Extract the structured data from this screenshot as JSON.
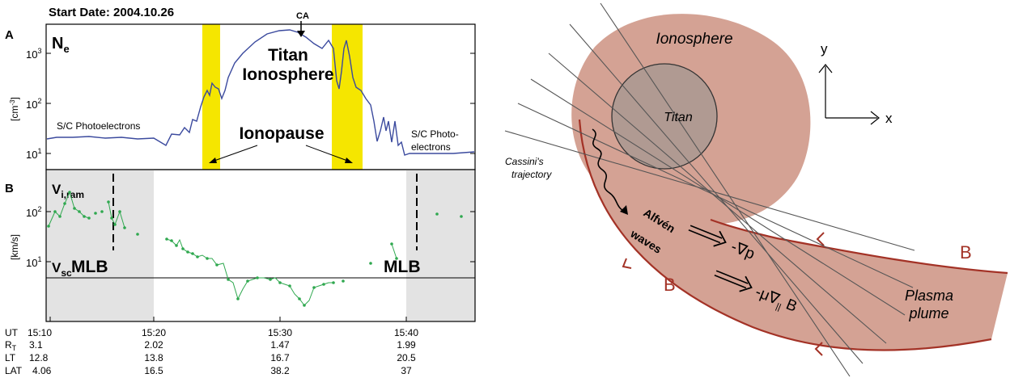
{
  "left_panel": {
    "start_date": "Start Date: 2004.10.26",
    "panel_a": {
      "letter": "A",
      "quantity": "N",
      "quantity_sub": "e",
      "unit": "[cm",
      "unit_sup": "-3",
      "unit_close": "]",
      "tick_base": "10",
      "yticks": [
        {
          "exp": "1",
          "value": 10
        },
        {
          "exp": "2",
          "value": 100
        },
        {
          "exp": "3",
          "value": 1000
        }
      ],
      "ca_label": "CA",
      "titan_label": "Titan",
      "ionosphere_label": "Ionosphere",
      "ionopause_label": "Ionopause",
      "photo_left_label": "S/C Photoelectrons",
      "photo_right_line1": "S/C Photo-",
      "photo_right_line2": "electrons",
      "highlight_color": "#f5e600",
      "line_color": "#3b4a9e"
    },
    "panel_b": {
      "letter": "B",
      "vi_label": "V",
      "vi_sub": "i,ram",
      "vsc_label": "V",
      "vsc_sub": "sc",
      "unit": "[km/s]",
      "tick_base": "10",
      "yticks": [
        {
          "exp": "1",
          "value": 10
        },
        {
          "exp": "2",
          "value": 100
        }
      ],
      "mlb_left": "MLB",
      "mlb_right": "MLB",
      "point_color": "#2fa84f",
      "shade_color": "#e3e3e3"
    },
    "time_axis": {
      "row_labels": {
        "ut": "UT",
        "rt": "R",
        "rt_sub": "T",
        "lt": "LT",
        "lat": "LAT"
      },
      "columns": [
        {
          "ut": "15:10",
          "rt": "3.1",
          "lt": "12.8",
          "lat": "4.06"
        },
        {
          "ut": "15:20",
          "rt": "2.02",
          "lt": "13.8",
          "lat": "16.5"
        },
        {
          "ut": "15:30",
          "rt": "1.47",
          "lt": "16.7",
          "lat": "38.2"
        },
        {
          "ut": "15:40",
          "rt": "1.99",
          "lt": "20.5",
          "lat": "37"
        }
      ]
    }
  },
  "right_panel": {
    "ionosphere_label": "Ionosphere",
    "titan_label": "Titan",
    "trajectory_line1": "Cassini's",
    "trajectory_line2": "trajectory",
    "alfven_line1": "Alfvén",
    "alfven_line2": "waves",
    "grad_p_label": "-∇p",
    "grad_b_prefix": "-μ∇",
    "grad_b_sub": "||",
    "grad_b_suffix": " B",
    "b_upper": "B",
    "b_lower": "B",
    "plume_line1": "Plasma",
    "plume_line2": "plume",
    "axis_y": "y",
    "axis_x": "x",
    "ionosphere_color": "#d4a294",
    "titan_color": "#b09a92",
    "field_line_color": "#a33226"
  }
}
